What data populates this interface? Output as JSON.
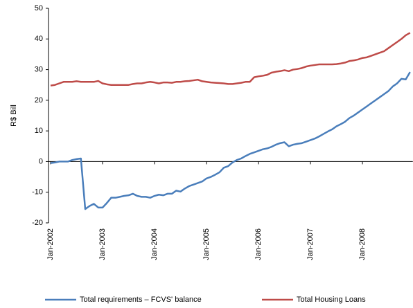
{
  "chart_data": {
    "type": "line",
    "y_label": "R$ Bill",
    "categories": [
      "Jan-2002",
      null,
      null,
      null,
      null,
      null,
      null,
      null,
      null,
      null,
      null,
      null,
      "Jan-2003",
      null,
      null,
      null,
      null,
      null,
      null,
      null,
      null,
      null,
      null,
      null,
      "Jan-2004",
      null,
      null,
      null,
      null,
      null,
      null,
      null,
      null,
      null,
      null,
      null,
      "Jan-2005",
      null,
      null,
      null,
      null,
      null,
      null,
      null,
      null,
      null,
      null,
      null,
      "Jan-2006",
      null,
      null,
      null,
      null,
      null,
      null,
      null,
      null,
      null,
      null,
      null,
      "Jan-2007",
      null,
      null,
      null,
      null,
      null,
      null,
      null,
      null,
      null,
      null,
      null,
      "Jan-2008",
      null,
      null,
      null,
      null,
      null,
      null,
      null,
      null,
      null,
      null,
      null
    ],
    "series": [
      {
        "name": "Total requirements – FCVS' balance",
        "color": "#4a7ebb",
        "values": [
          -0.5,
          -0.3,
          0,
          0,
          0,
          0.5,
          0.8,
          1,
          -15.5,
          -14.5,
          -13.8,
          -15,
          -15,
          -13.5,
          -11.8,
          -11.8,
          -11.5,
          -11.2,
          -11,
          -10.5,
          -11.2,
          -11.5,
          -11.5,
          -11.8,
          -11.2,
          -10.8,
          -11,
          -10.5,
          -10.5,
          -9.5,
          -9.8,
          -8.8,
          -8,
          -7.5,
          -7,
          -6.5,
          -5.5,
          -5,
          -4.3,
          -3.5,
          -2,
          -1.5,
          -0.3,
          0.5,
          1,
          1.8,
          2.5,
          3,
          3.5,
          4,
          4.3,
          4.8,
          5.5,
          6,
          6.3,
          5,
          5.5,
          5.8,
          6,
          6.5,
          7,
          7.5,
          8.2,
          9,
          9.8,
          10.5,
          11.5,
          12.2,
          13,
          14.2,
          15,
          16,
          17,
          18,
          19,
          20,
          21,
          22,
          23,
          24.5,
          25.5,
          27,
          26.8,
          29.2
        ]
      },
      {
        "name": "Total Housing Loans",
        "color": "#be4b48",
        "values": [
          24.8,
          25,
          25.5,
          26,
          26,
          26,
          26.2,
          26,
          26,
          26,
          26,
          26.3,
          25.5,
          25.2,
          25,
          25,
          25,
          25,
          25,
          25.3,
          25.5,
          25.5,
          25.8,
          26,
          25.8,
          25.5,
          25.8,
          25.8,
          25.7,
          26,
          26,
          26.2,
          26.3,
          26.5,
          26.7,
          26.2,
          26,
          25.8,
          25.7,
          25.6,
          25.5,
          25.3,
          25.3,
          25.5,
          25.7,
          26,
          26,
          27.5,
          27.8,
          28,
          28.3,
          29,
          29.3,
          29.5,
          29.8,
          29.5,
          30,
          30.2,
          30.5,
          31,
          31.3,
          31.5,
          31.7,
          31.7,
          31.7,
          31.7,
          31.8,
          32,
          32.3,
          32.8,
          33,
          33.3,
          33.8,
          34,
          34.5,
          35,
          35.5,
          36,
          37,
          38,
          39,
          40,
          41.2,
          42
        ]
      }
    ],
    "ylim": [
      -20,
      50
    ],
    "yticks": [
      -20,
      -10,
      0,
      10,
      20,
      30,
      40,
      50
    ],
    "legend": "bottom"
  }
}
